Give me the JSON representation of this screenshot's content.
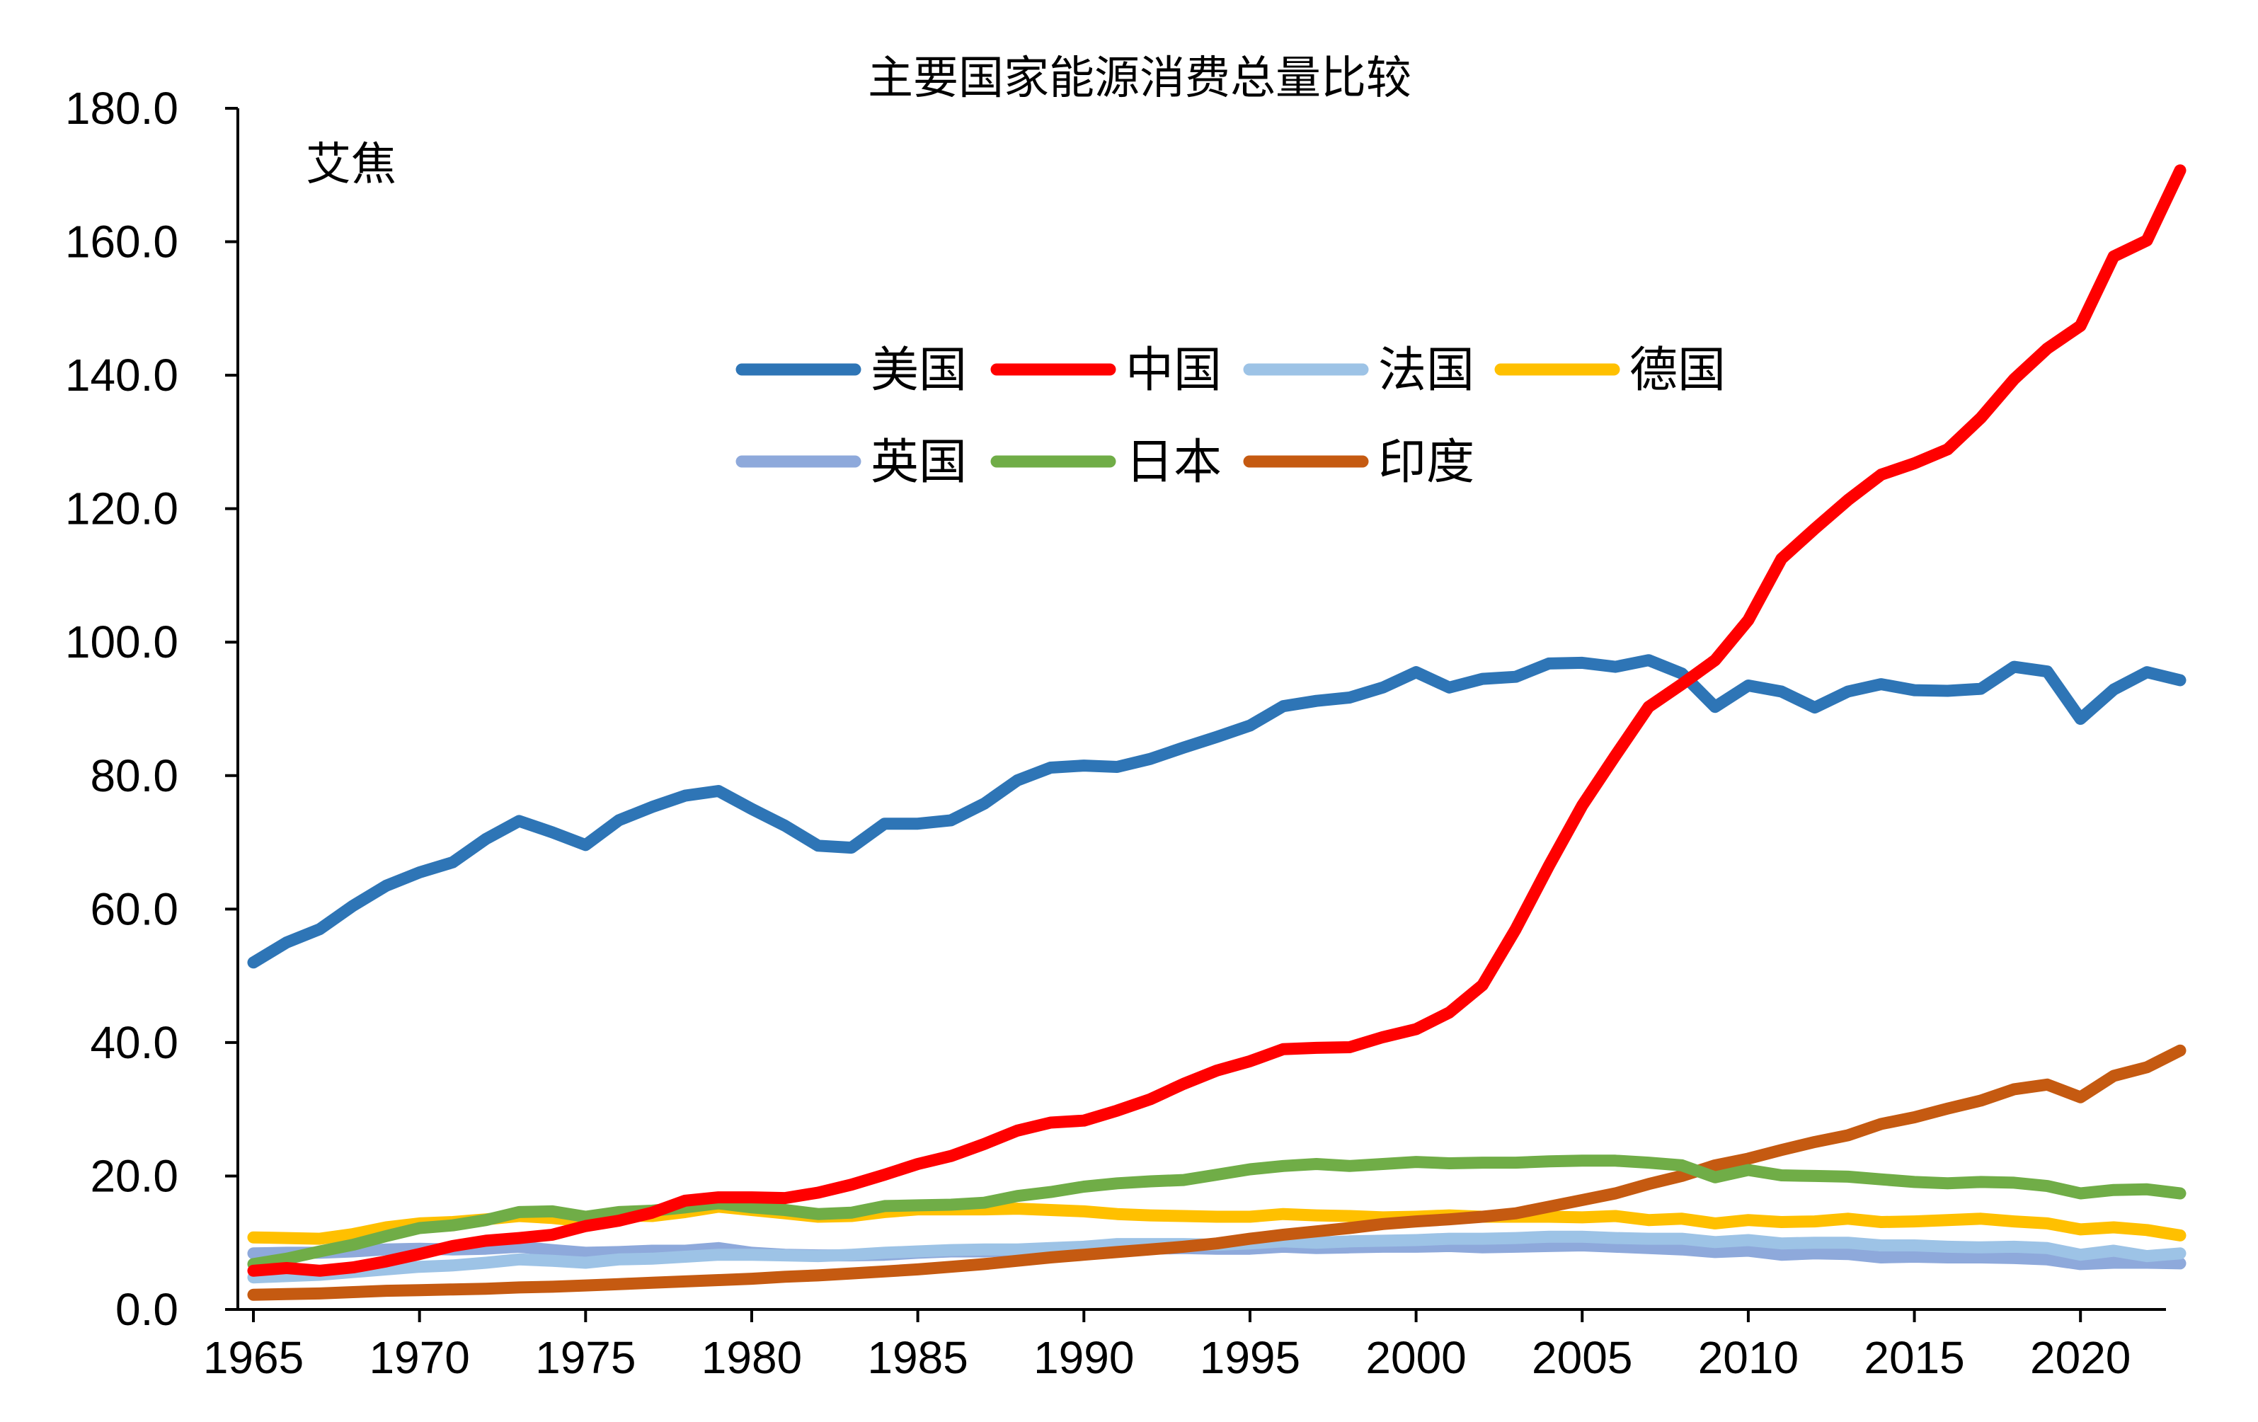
{
  "chart_data": {
    "type": "line",
    "title": "主要国家能源消费总量比较",
    "ylabel": "艾焦",
    "xlabel": "",
    "ylim": [
      0,
      180
    ],
    "yticks": [
      "0.0",
      "20.0",
      "40.0",
      "60.0",
      "80.0",
      "100.0",
      "120.0",
      "140.0",
      "160.0",
      "180.0"
    ],
    "xticks": [
      "1965",
      "1970",
      "1975",
      "1980",
      "1985",
      "1990",
      "1995",
      "2000",
      "2005",
      "2010",
      "2015",
      "2020"
    ],
    "legend_position": "top-center",
    "x": [
      1965,
      1966,
      1967,
      1968,
      1969,
      1970,
      1971,
      1972,
      1973,
      1974,
      1975,
      1976,
      1977,
      1978,
      1979,
      1980,
      1981,
      1982,
      1983,
      1984,
      1985,
      1986,
      1987,
      1988,
      1989,
      1990,
      1991,
      1992,
      1993,
      1994,
      1995,
      1996,
      1997,
      1998,
      1999,
      2000,
      2001,
      2002,
      2003,
      2004,
      2005,
      2006,
      2007,
      2008,
      2009,
      2010,
      2011,
      2012,
      2013,
      2014,
      2015,
      2016,
      2017,
      2018,
      2019,
      2020,
      2021,
      2022,
      2023
    ],
    "series": [
      {
        "name": "美国",
        "color": "#2E75B6",
        "values": [
          52.0,
          55.0,
          57.0,
          60.5,
          63.5,
          65.5,
          67.0,
          70.5,
          73.2,
          71.5,
          69.6,
          73.3,
          75.3,
          77.0,
          77.7,
          75.0,
          72.5,
          69.5,
          69.2,
          72.8,
          72.8,
          73.3,
          75.8,
          79.3,
          81.2,
          81.5,
          81.3,
          82.5,
          84.2,
          85.8,
          87.5,
          90.4,
          91.2,
          91.7,
          93.2,
          95.5,
          93.2,
          94.5,
          94.8,
          96.8,
          96.9,
          96.3,
          97.3,
          95.3,
          90.3,
          93.5,
          92.6,
          90.2,
          92.6,
          93.7,
          92.8,
          92.7,
          93.0,
          96.3,
          95.6,
          88.5,
          92.9,
          95.5,
          94.3
        ]
      },
      {
        "name": "中国",
        "color": "#FF0000",
        "values": [
          5.8,
          6.2,
          5.8,
          6.3,
          7.2,
          8.3,
          9.5,
          10.3,
          10.7,
          11.2,
          12.5,
          13.3,
          14.5,
          16.3,
          16.8,
          16.8,
          16.7,
          17.5,
          18.7,
          20.2,
          21.8,
          23.0,
          24.8,
          26.8,
          28.0,
          28.3,
          29.8,
          31.5,
          33.8,
          35.8,
          37.2,
          39.0,
          39.2,
          39.3,
          40.8,
          42.0,
          44.5,
          48.6,
          57.0,
          66.5,
          75.5,
          83.0,
          90.3,
          93.7,
          97.3,
          103.3,
          112.5,
          117.0,
          121.3,
          125.1,
          126.8,
          128.9,
          133.6,
          139.4,
          144.0,
          147.4,
          157.8,
          160.2,
          170.7
        ]
      },
      {
        "name": "法国",
        "color": "#9DC3E6",
        "values": [
          4.8,
          5.0,
          5.2,
          5.6,
          6.0,
          6.4,
          6.6,
          7.0,
          7.5,
          7.3,
          7.0,
          7.5,
          7.6,
          7.9,
          8.2,
          8.2,
          8.1,
          8.0,
          8.2,
          8.5,
          8.7,
          8.9,
          9.0,
          9.0,
          9.2,
          9.4,
          9.8,
          9.8,
          9.8,
          9.7,
          9.9,
          10.2,
          10.0,
          10.2,
          10.3,
          10.4,
          10.6,
          10.6,
          10.7,
          10.9,
          10.9,
          10.7,
          10.6,
          10.6,
          10.1,
          10.4,
          9.9,
          10.0,
          10.0,
          9.6,
          9.6,
          9.4,
          9.3,
          9.4,
          9.2,
          8.2,
          8.8,
          8.0,
          8.4
        ]
      },
      {
        "name": "德国",
        "color": "#FFC000",
        "values": [
          10.8,
          10.7,
          10.6,
          11.3,
          12.3,
          12.9,
          13.1,
          13.5,
          14.0,
          13.7,
          13.2,
          14.1,
          14.0,
          14.6,
          15.4,
          14.9,
          14.4,
          13.9,
          14.0,
          14.6,
          15.0,
          15.0,
          15.0,
          15.1,
          14.9,
          14.7,
          14.3,
          14.1,
          14.0,
          13.9,
          13.9,
          14.3,
          14.1,
          14.0,
          13.8,
          13.9,
          14.1,
          13.9,
          13.9,
          13.9,
          13.8,
          14.0,
          13.4,
          13.6,
          12.9,
          13.4,
          13.1,
          13.2,
          13.6,
          13.1,
          13.2,
          13.4,
          13.6,
          13.2,
          12.9,
          12.0,
          12.3,
          11.9,
          11.1
        ]
      },
      {
        "name": "英国",
        "color": "#8EA9DB",
        "values": [
          8.4,
          8.5,
          8.5,
          8.7,
          9.0,
          9.1,
          9.0,
          9.1,
          9.4,
          8.9,
          8.5,
          8.6,
          8.8,
          8.8,
          9.2,
          8.5,
          8.2,
          8.1,
          8.1,
          8.2,
          8.5,
          8.7,
          8.7,
          8.9,
          8.9,
          9.0,
          9.2,
          9.1,
          9.2,
          9.1,
          9.1,
          9.4,
          9.2,
          9.3,
          9.4,
          9.4,
          9.5,
          9.3,
          9.4,
          9.5,
          9.6,
          9.4,
          9.2,
          9.0,
          8.6,
          8.8,
          8.2,
          8.4,
          8.3,
          7.8,
          7.9,
          7.8,
          7.8,
          7.7,
          7.5,
          6.8,
          7.0,
          7.0,
          6.9
        ]
      },
      {
        "name": "日本",
        "color": "#70AD47",
        "values": [
          6.8,
          7.6,
          8.7,
          9.7,
          11.0,
          12.2,
          12.6,
          13.4,
          14.6,
          14.7,
          13.9,
          14.6,
          14.8,
          15.3,
          15.9,
          15.3,
          14.9,
          14.3,
          14.5,
          15.5,
          15.6,
          15.7,
          16.0,
          17.0,
          17.6,
          18.4,
          18.9,
          19.2,
          19.4,
          20.2,
          21.0,
          21.5,
          21.8,
          21.5,
          21.8,
          22.1,
          21.9,
          22.0,
          22.0,
          22.2,
          22.3,
          22.3,
          22.0,
          21.6,
          19.8,
          20.9,
          20.1,
          20.0,
          19.9,
          19.5,
          19.1,
          18.9,
          19.1,
          19.0,
          18.5,
          17.4,
          17.9,
          18.0,
          17.4
        ]
      },
      {
        "name": "印度",
        "color": "#C55A11",
        "values": [
          2.2,
          2.3,
          2.4,
          2.6,
          2.8,
          2.9,
          3.0,
          3.1,
          3.3,
          3.4,
          3.6,
          3.8,
          4.0,
          4.2,
          4.4,
          4.6,
          4.9,
          5.1,
          5.4,
          5.7,
          6.0,
          6.4,
          6.8,
          7.3,
          7.8,
          8.2,
          8.6,
          9.0,
          9.4,
          9.9,
          10.6,
          11.2,
          11.7,
          12.2,
          12.8,
          13.2,
          13.5,
          13.9,
          14.4,
          15.4,
          16.4,
          17.4,
          18.8,
          20.0,
          21.6,
          22.6,
          23.9,
          25.1,
          26.1,
          27.8,
          28.8,
          30.1,
          31.3,
          33.0,
          33.7,
          31.8,
          35.0,
          36.3,
          38.8
        ]
      }
    ]
  }
}
